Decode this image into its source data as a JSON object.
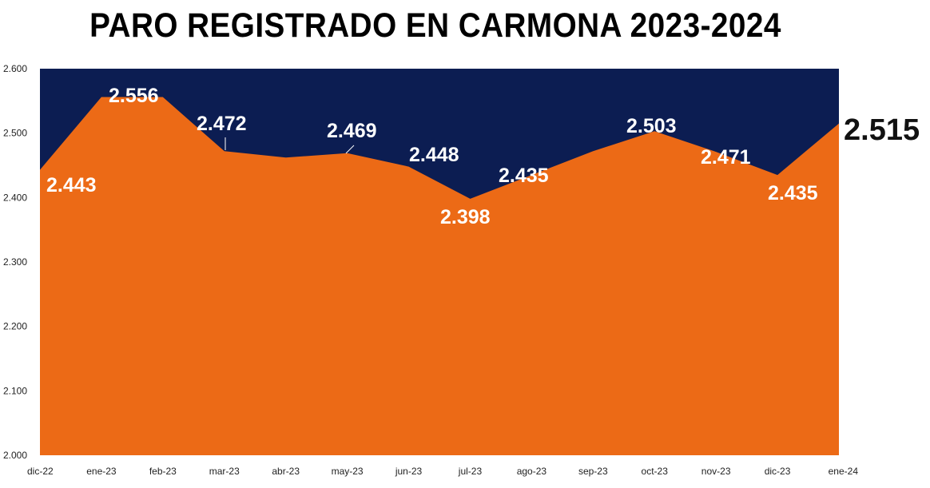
{
  "chart_data": {
    "type": "area",
    "title": "PARO REGISTRADO EN CARMONA 2023-2024",
    "categories": [
      "dic-22",
      "ene-23",
      "feb-23",
      "mar-23",
      "abr-23",
      "may-23",
      "jun-23",
      "jul-23",
      "ago-23",
      "sep-23",
      "oct-23",
      "nov-23",
      "dic-23",
      "ene-24"
    ],
    "values": [
      2443,
      2556,
      2556,
      2472,
      2462,
      2469,
      2448,
      2398,
      2435,
      2472,
      2503,
      2471,
      2435,
      2515
    ],
    "data_labels": [
      {
        "index": 0,
        "text": "2.443"
      },
      {
        "index": 1,
        "text": "2.556"
      },
      {
        "index": 3,
        "text": "2.472"
      },
      {
        "index": 5,
        "text": "2.469"
      },
      {
        "index": 6,
        "text": "2.448"
      },
      {
        "index": 7,
        "text": "2.398"
      },
      {
        "index": 8,
        "text": "2.435"
      },
      {
        "index": 10,
        "text": "2.503"
      },
      {
        "index": 11,
        "text": "2.471"
      },
      {
        "index": 12,
        "text": "2.435"
      },
      {
        "index": 13,
        "text": "2.515"
      }
    ],
    "yticks": [
      "2.000",
      "2.100",
      "2.200",
      "2.300",
      "2.400",
      "2.500",
      "2.600"
    ],
    "ylim": [
      2000,
      2600
    ],
    "grid": false,
    "colors": {
      "area": "#EC6A16",
      "background": "#0C1D52"
    }
  }
}
